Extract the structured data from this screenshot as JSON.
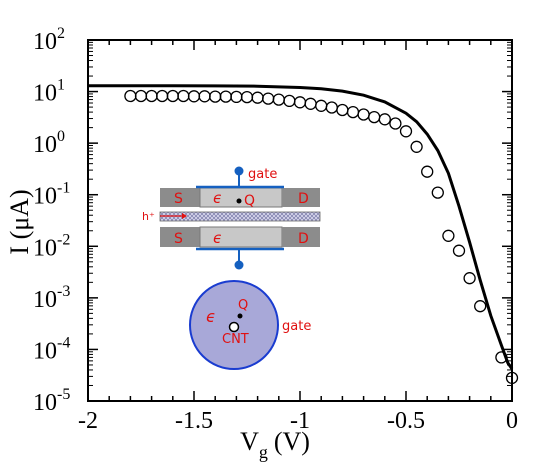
{
  "chart_data": {
    "type": "line",
    "x_label_base": "V",
    "x_label_sub": "g",
    "x_label_unit": "(V)",
    "y_label": "I (μA)",
    "xlim": [
      -2,
      0
    ],
    "ylim_log10": [
      -5,
      2
    ],
    "y_scale": "log",
    "grid": false,
    "x_ticks": [
      {
        "value": -2,
        "label": "-2"
      },
      {
        "value": -1.5,
        "label": "-1.5"
      },
      {
        "value": -1,
        "label": "-1"
      },
      {
        "value": -0.5,
        "label": "-0.5"
      },
      {
        "value": 0,
        "label": "0"
      }
    ],
    "y_ticks": [
      {
        "exp": 2,
        "base": "10",
        "sup": "2"
      },
      {
        "exp": 1,
        "base": "10",
        "sup": "1"
      },
      {
        "exp": 0,
        "base": "10",
        "sup": "0"
      },
      {
        "exp": -1,
        "base": "10",
        "sup": "-1"
      },
      {
        "exp": -2,
        "base": "10",
        "sup": "-2"
      },
      {
        "exp": -3,
        "base": "10",
        "sup": "-3"
      },
      {
        "exp": -4,
        "base": "10",
        "sup": "-4"
      },
      {
        "exp": -5,
        "base": "10",
        "sup": "-5"
      }
    ],
    "series": [
      {
        "style": "solid-line",
        "color": "#000000",
        "points": [
          [
            -2.0,
            13.0
          ],
          [
            -1.8,
            13.0
          ],
          [
            -1.6,
            13.0
          ],
          [
            -1.4,
            12.9
          ],
          [
            -1.2,
            12.7
          ],
          [
            -1.0,
            12.0
          ],
          [
            -0.9,
            11.3
          ],
          [
            -0.8,
            10.2
          ],
          [
            -0.7,
            8.5
          ],
          [
            -0.6,
            6.3
          ],
          [
            -0.5,
            3.8
          ],
          [
            -0.45,
            2.6
          ],
          [
            -0.4,
            1.5
          ],
          [
            -0.35,
            0.72
          ],
          [
            -0.3,
            0.26
          ],
          [
            -0.25,
            0.06
          ],
          [
            -0.2,
            0.012
          ],
          [
            -0.15,
            0.0022
          ],
          [
            -0.1,
            0.00045
          ],
          [
            -0.05,
            0.00012
          ],
          [
            -0.02,
            5.5e-05
          ],
          [
            0.0,
            4.2e-05
          ]
        ]
      },
      {
        "style": "open-circle",
        "color": "#000000",
        "points": [
          [
            -1.8,
            8.2
          ],
          [
            -1.75,
            8.2
          ],
          [
            -1.7,
            8.2
          ],
          [
            -1.65,
            8.2
          ],
          [
            -1.6,
            8.2
          ],
          [
            -1.55,
            8.2
          ],
          [
            -1.5,
            8.1
          ],
          [
            -1.45,
            8.1
          ],
          [
            -1.4,
            8.0
          ],
          [
            -1.35,
            8.0
          ],
          [
            -1.3,
            7.9
          ],
          [
            -1.25,
            7.8
          ],
          [
            -1.2,
            7.6
          ],
          [
            -1.15,
            7.3
          ],
          [
            -1.1,
            7.0
          ],
          [
            -1.05,
            6.6
          ],
          [
            -1.0,
            6.2
          ],
          [
            -0.95,
            5.8
          ],
          [
            -0.9,
            5.3
          ],
          [
            -0.85,
            4.9
          ],
          [
            -0.8,
            4.4
          ],
          [
            -0.75,
            4.0
          ],
          [
            -0.7,
            3.6
          ],
          [
            -0.65,
            3.2
          ],
          [
            -0.6,
            2.9
          ],
          [
            -0.55,
            2.4
          ],
          [
            -0.5,
            1.7
          ],
          [
            -0.45,
            0.85
          ],
          [
            -0.4,
            0.28
          ],
          [
            -0.35,
            0.11
          ],
          [
            -0.3,
            0.016
          ],
          [
            -0.25,
            0.0082
          ],
          [
            -0.2,
            0.0024
          ],
          [
            -0.15,
            0.00069
          ],
          [
            -0.05,
            7e-05
          ],
          [
            0.0,
            2.8e-05
          ]
        ]
      }
    ]
  },
  "inset": {
    "source_label": "S",
    "drain_label": "D",
    "epsilon_label": "ϵ",
    "charge_label": "Q",
    "gate_label": "gate",
    "hole_label": "h⁺",
    "cnt_label": "CNT",
    "colors": {
      "annotation": "#e01010",
      "contact": "#8c8c8c",
      "dielectric": "#c8c8c8",
      "gate_line": "#1560c0",
      "cross_section": "#a8a8d8",
      "cross_section_edge": "#1a3cd0"
    }
  }
}
